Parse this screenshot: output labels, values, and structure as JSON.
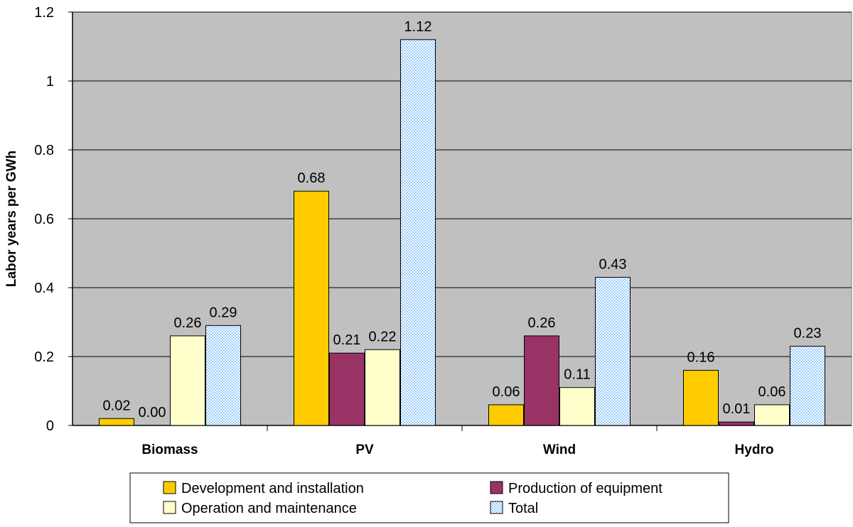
{
  "chart_data": {
    "type": "bar",
    "title": "",
    "xlabel": "",
    "ylabel": "Labor years per GWh",
    "ylim": [
      0,
      1.2
    ],
    "yticks": [
      0,
      0.2,
      0.4,
      0.6,
      0.8,
      1,
      1.2
    ],
    "ytick_labels": [
      "0",
      "0.2",
      "0.4",
      "0.6",
      "0.8",
      "1",
      "1.2"
    ],
    "grid": true,
    "legend_position": "bottom",
    "categories": [
      "Biomass",
      "PV",
      "Wind",
      "Hydro"
    ],
    "series": [
      {
        "name": "Development and installation",
        "color": "#FFCC00",
        "pattern": "solid",
        "values": [
          0.02,
          0.68,
          0.06,
          0.16
        ],
        "labels": [
          "0.02",
          "0.68",
          "0.06",
          "0.16"
        ]
      },
      {
        "name": "Production of equipment",
        "color": "#993366",
        "pattern": "solid",
        "values": [
          0.0,
          0.21,
          0.26,
          0.01
        ],
        "labels": [
          "0.00",
          "0.21",
          "0.26",
          "0.01"
        ]
      },
      {
        "name": "Operation and maintenance",
        "color": "#FFFFCC",
        "pattern": "solid",
        "values": [
          0.26,
          0.22,
          0.11,
          0.06
        ],
        "labels": [
          "0.26",
          "0.22",
          "0.11",
          "0.06"
        ]
      },
      {
        "name": "Total",
        "color": "#99CCFF",
        "pattern": "dotted",
        "values": [
          0.29,
          1.12,
          0.43,
          0.23
        ],
        "labels": [
          "0.29",
          "1.12",
          "0.43",
          "0.23"
        ]
      }
    ],
    "plot_background": "#C0C0C0"
  }
}
